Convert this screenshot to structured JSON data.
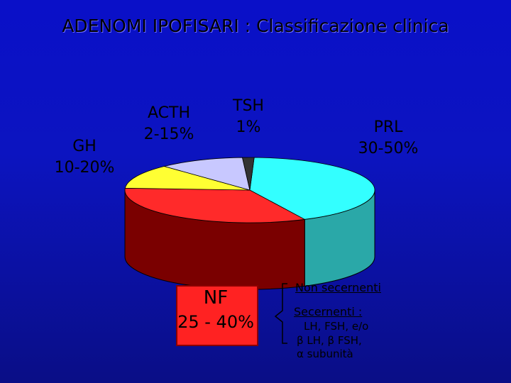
{
  "title": "ADENOMI IPOFISARI : Classificazione clinica",
  "chart_data": {
    "type": "pie",
    "slices": [
      {
        "name": "PRL",
        "label": "30-50%",
        "value": 42,
        "color": "#33ffff",
        "side": "#2aa8a8"
      },
      {
        "name": "NF",
        "label": "25 - 40%",
        "value": 33,
        "color": "#ff2a2a",
        "side": "#7a0000"
      },
      {
        "name": "GH",
        "label": "10-20%",
        "value": 12,
        "color": "#ffff33",
        "side": "#9a9a00"
      },
      {
        "name": "ACTH",
        "label": "2-15%",
        "value": 11,
        "color": "#c8c8ff",
        "side": "#7070a0"
      },
      {
        "name": "TSH",
        "label": "1%",
        "value": 1.5,
        "color": "#333333",
        "side": "#111111"
      }
    ]
  },
  "labels": {
    "gh_name": "GH",
    "gh_value": "10-20%",
    "acth_name": "ACTH",
    "acth_value": "2-15%",
    "tsh_name": "TSH",
    "tsh_value": "1%",
    "prl_name": "PRL",
    "prl_value": "30-50%",
    "nf_name": "NF",
    "nf_value": "25 - 40%"
  },
  "nf_subtypes": {
    "non_secreting": "Non secernenti",
    "secreting": "Secernenti :",
    "line1": "LH, FSH, e/o",
    "line2": "β LH, β FSH,",
    "line3": "α subunità"
  }
}
